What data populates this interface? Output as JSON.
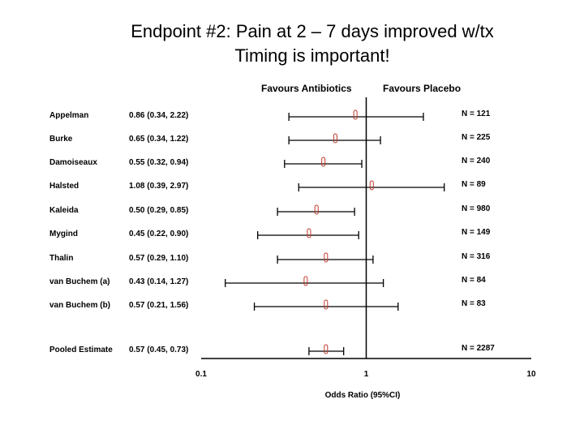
{
  "slide": {
    "title_line1": "Endpoint #2: Pain at 2 – 7 days improved w/tx",
    "title_line2": "Timing is important!"
  },
  "chart_data": {
    "type": "forest",
    "header_left": "Favours Antibiotics",
    "header_right": "Favours Placebo",
    "xlabel": "Odds Ratio (95%CI)",
    "x_scale": "log",
    "xlim": [
      0.1,
      10
    ],
    "x_ticks": [
      "0.1",
      "1",
      "10"
    ],
    "reference_line": 1,
    "point_color": "#c0392b",
    "studies": [
      {
        "name": "Appelman",
        "ci_text": "0.86 (0.34, 2.22)",
        "n_text": "N = 121",
        "or": 0.86,
        "lo": 0.34,
        "hi": 2.22
      },
      {
        "name": "Burke",
        "ci_text": "0.65 (0.34, 1.22)",
        "n_text": "N = 225",
        "or": 0.65,
        "lo": 0.34,
        "hi": 1.22
      },
      {
        "name": "Damoiseaux",
        "ci_text": "0.55 (0.32, 0.94)",
        "n_text": "N = 240",
        "or": 0.55,
        "lo": 0.32,
        "hi": 0.94
      },
      {
        "name": "Halsted",
        "ci_text": "1.08 (0.39, 2.97)",
        "n_text": "N = 89",
        "or": 1.08,
        "lo": 0.39,
        "hi": 2.97
      },
      {
        "name": "Kaleida",
        "ci_text": "0.50 (0.29, 0.85)",
        "n_text": "N = 980",
        "or": 0.5,
        "lo": 0.29,
        "hi": 0.85
      },
      {
        "name": "Mygind",
        "ci_text": "0.45 (0.22, 0.90)",
        "n_text": "N = 149",
        "or": 0.45,
        "lo": 0.22,
        "hi": 0.9
      },
      {
        "name": "Thalin",
        "ci_text": "0.57 (0.29, 1.10)",
        "n_text": "N = 316",
        "or": 0.57,
        "lo": 0.29,
        "hi": 1.1
      },
      {
        "name": "van Buchem (a)",
        "ci_text": "0.43 (0.14, 1.27)",
        "n_text": "N = 84",
        "or": 0.43,
        "lo": 0.14,
        "hi": 1.27
      },
      {
        "name": "van Buchem (b)",
        "ci_text": "0.57 (0.21, 1.56)",
        "n_text": "N = 83",
        "or": 0.57,
        "lo": 0.21,
        "hi": 1.56
      },
      {
        "name": "Pooled Estimate",
        "ci_text": "0.57 (0.45, 0.73)",
        "n_text": "N = 2287",
        "or": 0.57,
        "lo": 0.45,
        "hi": 0.73
      }
    ]
  }
}
